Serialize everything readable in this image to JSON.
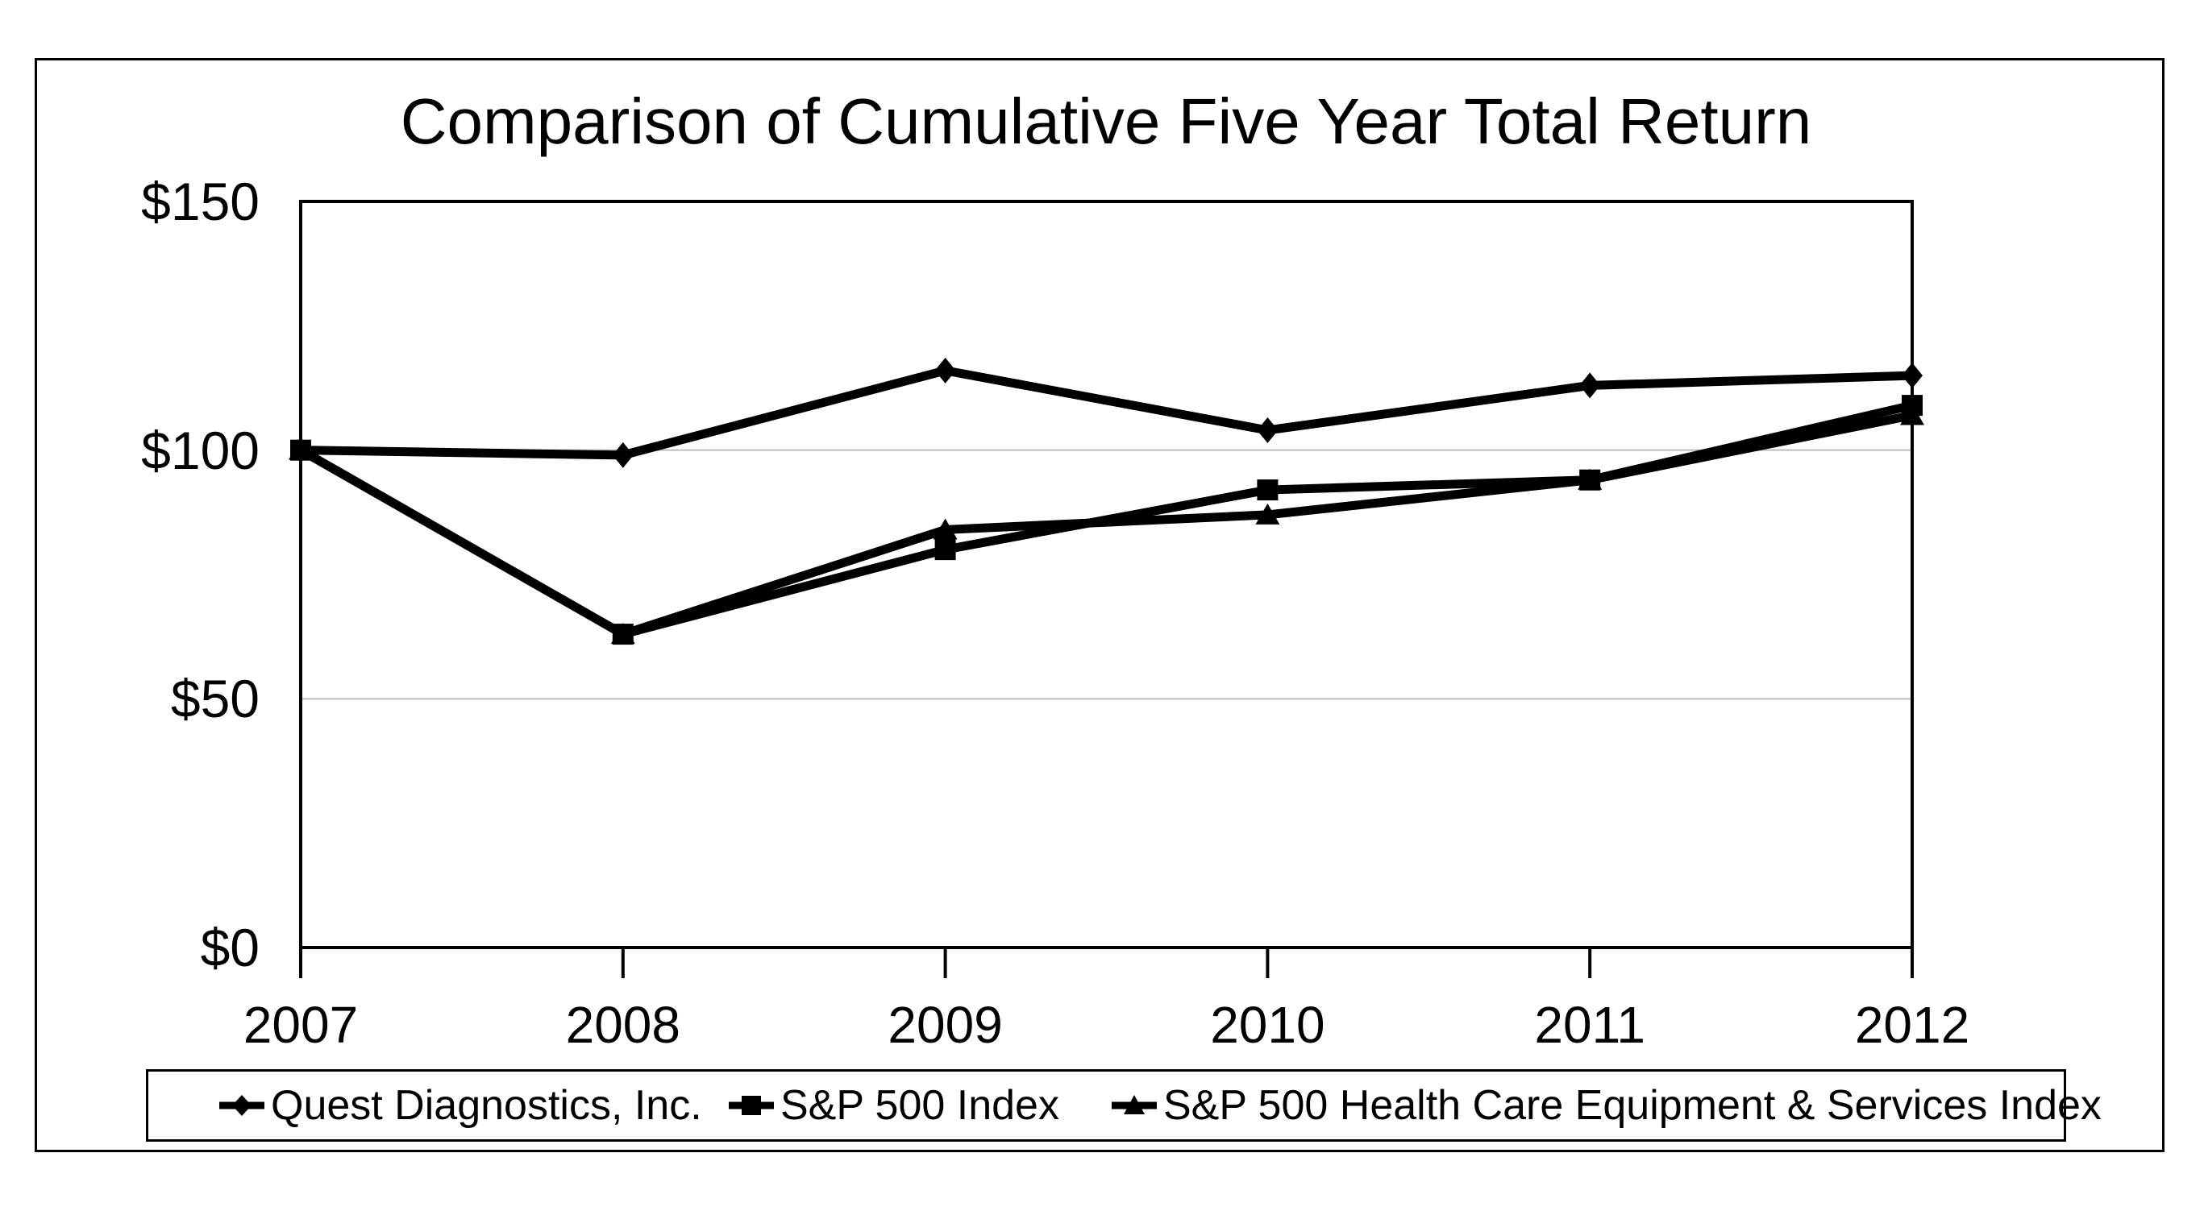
{
  "chart_data": {
    "type": "line",
    "title": "Comparison of Cumulative Five Year Total Return",
    "categories": [
      "2007",
      "2008",
      "2009",
      "2010",
      "2011",
      "2012"
    ],
    "series": [
      {
        "name": "Quest Diagnostics, Inc.",
        "marker": "diamond",
        "values": [
          100,
          99,
          116,
          104,
          113,
          115
        ]
      },
      {
        "name": "S&P 500 Index",
        "marker": "square",
        "values": [
          100,
          63,
          80,
          92,
          94,
          109
        ]
      },
      {
        "name": "S&P 500 Health Care Equipment & Services Index",
        "marker": "triangle",
        "values": [
          100,
          63,
          84,
          87,
          94,
          107
        ]
      }
    ],
    "y_ticks": [
      {
        "label": "$150",
        "value": 150
      },
      {
        "label": "$100",
        "value": 100
      },
      {
        "label": "$50",
        "value": 50
      },
      {
        "label": "$0",
        "value": 0
      }
    ],
    "ylim": [
      0,
      150
    ],
    "gridline_values": [
      50,
      100
    ],
    "grid": "horizontal",
    "legend_position": "bottom",
    "colors": {
      "series": "#000000",
      "gridline": "#bdbdbd",
      "background": "#ffffff",
      "border": "#000000"
    }
  }
}
